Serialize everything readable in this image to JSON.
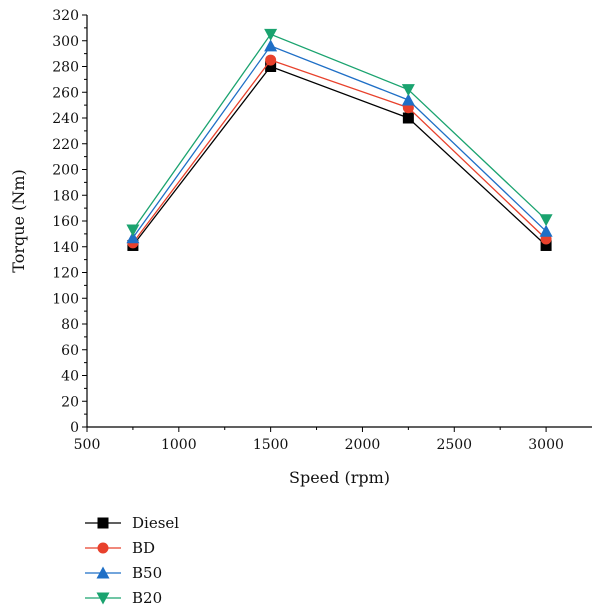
{
  "chart_data": {
    "type": "line",
    "title": "",
    "xlabel": "Speed (rpm)",
    "ylabel": "Torque (Nm)",
    "xlim": [
      500,
      3250
    ],
    "ylim": [
      0,
      320
    ],
    "x_ticks": [
      500,
      1000,
      1500,
      2000,
      2500,
      3000
    ],
    "y_ticks": [
      0,
      20,
      40,
      60,
      80,
      100,
      120,
      140,
      160,
      180,
      200,
      220,
      240,
      260,
      280,
      300,
      320
    ],
    "grid": false,
    "legend_position": "bottom-left",
    "x": [
      750,
      1500,
      2250,
      3000
    ],
    "series": [
      {
        "name": "Diesel",
        "values": [
          141,
          280,
          240,
          141
        ],
        "color": "#000000",
        "marker": "square"
      },
      {
        "name": "BD",
        "values": [
          143,
          285,
          248,
          146
        ],
        "color": "#e8412c",
        "marker": "circle"
      },
      {
        "name": "B50",
        "values": [
          147,
          296,
          254,
          152
        ],
        "color": "#1f6fc6",
        "marker": "triangle-up"
      },
      {
        "name": "B20",
        "values": [
          153,
          305,
          262,
          161
        ],
        "color": "#1aa36f",
        "marker": "triangle-down"
      }
    ]
  }
}
